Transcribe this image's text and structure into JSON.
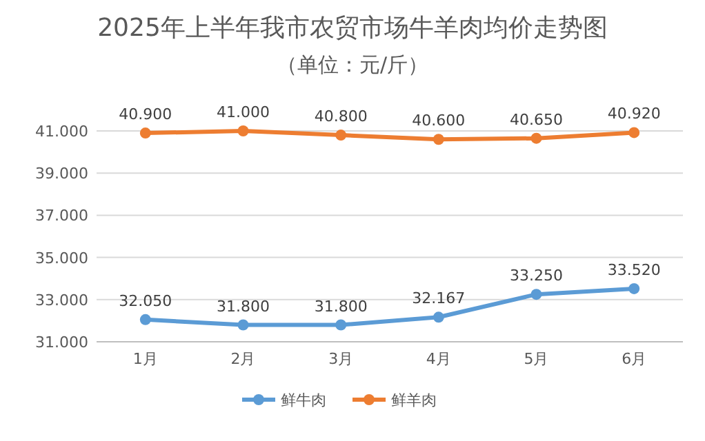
{
  "chart_data": {
    "type": "line",
    "title": "2025年上半年我市农贸市场牛羊肉均价走势图",
    "subtitle": "（单位：元/斤）",
    "categories": [
      "1月",
      "2月",
      "3月",
      "4月",
      "5月",
      "6月"
    ],
    "series": [
      {
        "name": "鲜牛肉",
        "color": "#5b9bd5",
        "values": [
          32.05,
          31.8,
          31.8,
          32.167,
          33.25,
          33.52
        ],
        "value_labels": [
          "32.050",
          "31.800",
          "31.800",
          "32.167",
          "33.250",
          "33.520"
        ]
      },
      {
        "name": "鲜羊肉",
        "color": "#ed7d31",
        "values": [
          40.9,
          41.0,
          40.8,
          40.6,
          40.65,
          40.92
        ],
        "value_labels": [
          "40.900",
          "41.000",
          "40.800",
          "40.600",
          "40.650",
          "40.920"
        ]
      }
    ],
    "ylim": [
      31,
      41
    ],
    "yticks": [
      {
        "value": 31,
        "label": "31.000"
      },
      {
        "value": 33,
        "label": "33.000"
      },
      {
        "value": 35,
        "label": "35.000"
      },
      {
        "value": 37,
        "label": "37.000"
      },
      {
        "value": 39,
        "label": "39.000"
      },
      {
        "value": 41,
        "label": "41.000"
      }
    ],
    "grid": "y",
    "legend": "bottom",
    "marker": "circle",
    "line_style": "solid"
  }
}
